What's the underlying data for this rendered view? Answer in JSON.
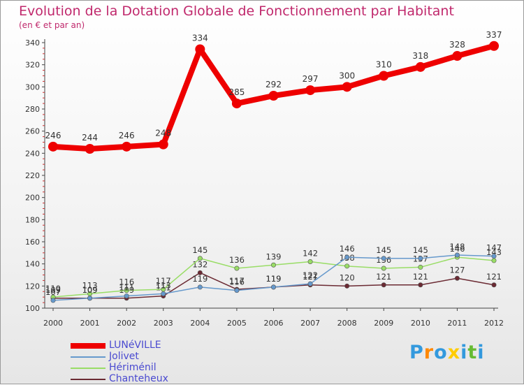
{
  "chart_data": {
    "type": "line",
    "title": "Evolution de la Dotation Globale de Fonctionnement par Habitant",
    "subtitle": "(en € et par an)",
    "xlabel": "",
    "ylabel": "",
    "x": [
      "2000",
      "2001",
      "2002",
      "2003",
      "2004",
      "2005",
      "2006",
      "2007",
      "2008",
      "2009",
      "2010",
      "2011",
      "2012"
    ],
    "ylim": [
      100,
      340
    ],
    "yticks": [
      100,
      120,
      140,
      160,
      180,
      200,
      220,
      240,
      260,
      280,
      300,
      320,
      340
    ],
    "grid": false,
    "legend_position": "bottom-left",
    "series": [
      {
        "name": "LUNéVILLE",
        "color": "#ee0000",
        "values": [
          246,
          244,
          246,
          248,
          334,
          285,
          292,
          297,
          300,
          310,
          318,
          328,
          337
        ]
      },
      {
        "name": "Jolivet",
        "color": "#6699cc",
        "values": [
          107,
          109,
          111,
          113,
          119,
          116,
          119,
          122,
          146,
          145,
          145,
          148,
          147
        ]
      },
      {
        "name": "Hériménil",
        "color": "#99dd66",
        "values": [
          110,
          113,
          116,
          117,
          145,
          136,
          139,
          142,
          138,
          136,
          137,
          146,
          143
        ]
      },
      {
        "name": "Chanteheux",
        "color": "#6b2a33",
        "values": [
          109,
          109,
          109,
          111,
          132,
          117,
          119,
          121,
          120,
          121,
          121,
          127,
          121
        ]
      }
    ]
  },
  "logo": {
    "text": "Proxiti",
    "letter_colors": [
      "#3399dd",
      "#ff8800",
      "#3399dd",
      "#ffcc00",
      "#3399dd",
      "#66bb33",
      "#3399dd"
    ]
  }
}
